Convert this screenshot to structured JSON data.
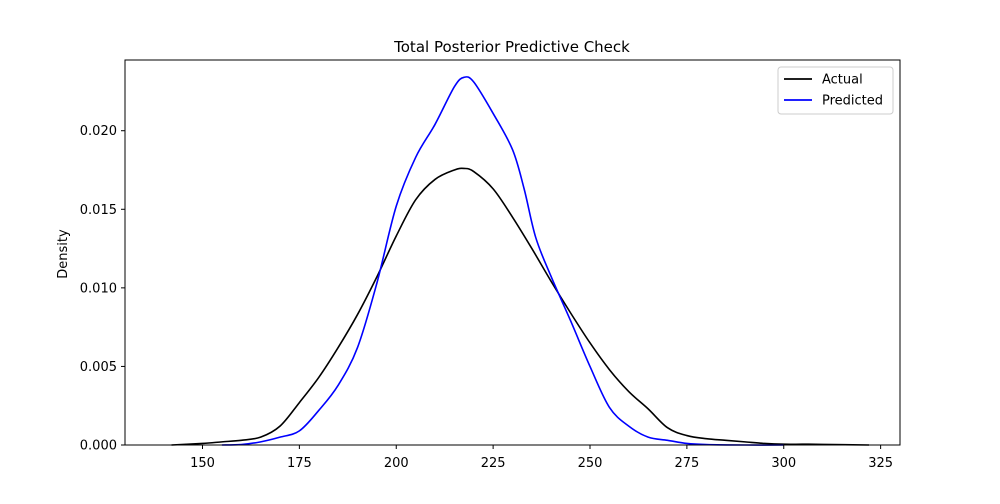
{
  "chart_data": {
    "type": "line",
    "title": "Total Posterior Predictive Check",
    "xlabel": "",
    "ylabel": "Density",
    "xlim": [
      130,
      330
    ],
    "ylim": [
      0,
      0.0245
    ],
    "x_ticks": [
      150,
      175,
      200,
      225,
      250,
      275,
      300,
      325
    ],
    "y_ticks": [
      0.0,
      0.005,
      0.01,
      0.015,
      0.02
    ],
    "x_tick_labels": [
      "150",
      "175",
      "200",
      "225",
      "250",
      "275",
      "300",
      "325"
    ],
    "y_tick_labels": [
      "0.000",
      "0.005",
      "0.010",
      "0.015",
      "0.020"
    ],
    "grid": false,
    "legend_position": "top-right",
    "series": [
      {
        "name": "Actual",
        "color": "#000000",
        "points": [
          [
            142,
            0.0
          ],
          [
            150,
            0.0001
          ],
          [
            155,
            0.0002
          ],
          [
            160,
            0.0003
          ],
          [
            165,
            0.0005
          ],
          [
            170,
            0.0012
          ],
          [
            175,
            0.0027
          ],
          [
            180,
            0.0043
          ],
          [
            185,
            0.0062
          ],
          [
            190,
            0.0083
          ],
          [
            195,
            0.0107
          ],
          [
            200,
            0.0133
          ],
          [
            205,
            0.0156
          ],
          [
            210,
            0.0169
          ],
          [
            215,
            0.0175
          ],
          [
            217.5,
            0.0176
          ],
          [
            220,
            0.0174
          ],
          [
            225,
            0.0163
          ],
          [
            230,
            0.0145
          ],
          [
            235,
            0.0125
          ],
          [
            240,
            0.0104
          ],
          [
            245,
            0.0084
          ],
          [
            250,
            0.0065
          ],
          [
            255,
            0.0048
          ],
          [
            260,
            0.0034
          ],
          [
            265,
            0.0023
          ],
          [
            270,
            0.0011
          ],
          [
            275,
            0.0006
          ],
          [
            280,
            0.0004
          ],
          [
            285,
            0.0003
          ],
          [
            290,
            0.0002
          ],
          [
            295,
            0.0001
          ],
          [
            300,
            5e-05
          ],
          [
            305,
            5e-05
          ],
          [
            310,
            4e-05
          ],
          [
            322,
            0.0
          ]
        ]
      },
      {
        "name": "Predicted",
        "color": "#0000ff",
        "points": [
          [
            155,
            0.0
          ],
          [
            160,
            3e-05
          ],
          [
            165,
            0.0002
          ],
          [
            170,
            0.0005
          ],
          [
            175,
            0.0009
          ],
          [
            180,
            0.0022
          ],
          [
            185,
            0.0038
          ],
          [
            190,
            0.0062
          ],
          [
            195,
            0.0103
          ],
          [
            200,
            0.0152
          ],
          [
            205,
            0.0183
          ],
          [
            210,
            0.0204
          ],
          [
            215,
            0.0228
          ],
          [
            217.5,
            0.0234
          ],
          [
            220,
            0.0231
          ],
          [
            225,
            0.0211
          ],
          [
            230,
            0.0188
          ],
          [
            233,
            0.0163
          ],
          [
            236,
            0.0132
          ],
          [
            240,
            0.0107
          ],
          [
            245,
            0.0079
          ],
          [
            250,
            0.005
          ],
          [
            255,
            0.0024
          ],
          [
            260,
            0.0012
          ],
          [
            265,
            0.0005
          ],
          [
            270,
            0.0003
          ],
          [
            275,
            0.0001
          ],
          [
            280,
            3e-05
          ],
          [
            290,
            0.0
          ],
          [
            300,
            0.0
          ]
        ]
      }
    ]
  }
}
